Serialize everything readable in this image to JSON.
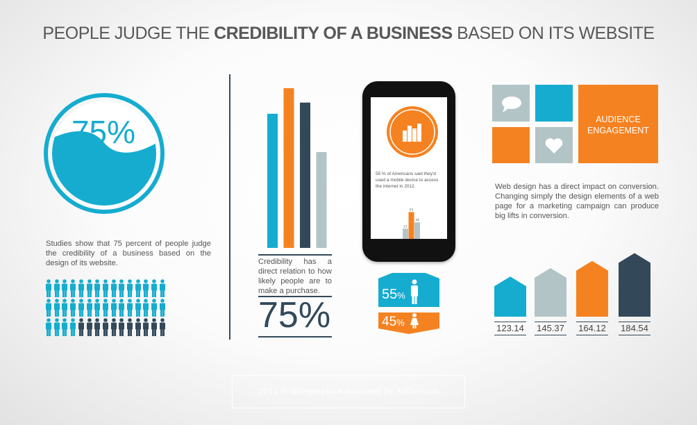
{
  "title": {
    "pre": "PEOPLE JUDGE THE ",
    "bold": "CREDIBILITY OF A BUSINESS",
    "post": " BASED ON ITS WEBSITE"
  },
  "colors": {
    "blue": "#15acd0",
    "orange": "#f58220",
    "dark": "#33495a",
    "gray": "#b2c4c6"
  },
  "left": {
    "circle_percent": "75%",
    "fill_fraction": 0.75,
    "text": "Studies show that 75 percent of people judge the credibility of a business based on the design of its website.",
    "people": {
      "total": 45,
      "highlighted": 34,
      "icon": "person-icon"
    }
  },
  "middle": {
    "bars": [
      {
        "color": "blue",
        "value": 0.84
      },
      {
        "color": "orange",
        "value": 1.0
      },
      {
        "color": "dark",
        "value": 0.91
      },
      {
        "color": "gray",
        "value": 0.6
      }
    ],
    "text": "Credibility has a direct relation to how likely people are to make a purchase.",
    "big_percent": "75%"
  },
  "phone": {
    "icon": "bar-chart-icon",
    "text": "55 % of Americans said they'd used a mobile device to access the internet in 2012.",
    "mini_bars": [
      {
        "value": 21,
        "label": "21",
        "color": "gray"
      },
      {
        "value": 55,
        "label": "55",
        "color": "orange"
      },
      {
        "value": 34,
        "label": "34",
        "color": "gray"
      }
    ],
    "male": {
      "value": "55",
      "unit": "%",
      "icon": "male-icon"
    },
    "female": {
      "value": "45",
      "unit": "%",
      "icon": "female-icon"
    }
  },
  "right": {
    "tile_label": "AUDIENCE ENGAGEMENT",
    "text": "Web design has a direct impact on conversion. Changing simply the design elements of a web page for a marketing campaign can produce big lifts in conversion.",
    "houses": [
      {
        "value": 123.14,
        "label": "123.14",
        "color": "blue"
      },
      {
        "value": 145.37,
        "label": "145.37",
        "color": "gray"
      },
      {
        "value": 164.12,
        "label": "164.12",
        "color": "orange"
      },
      {
        "value": 184.54,
        "label": "184.54",
        "color": "dark"
      }
    ]
  },
  "footer": "2013 © Infographics designed by ArtVersion"
}
